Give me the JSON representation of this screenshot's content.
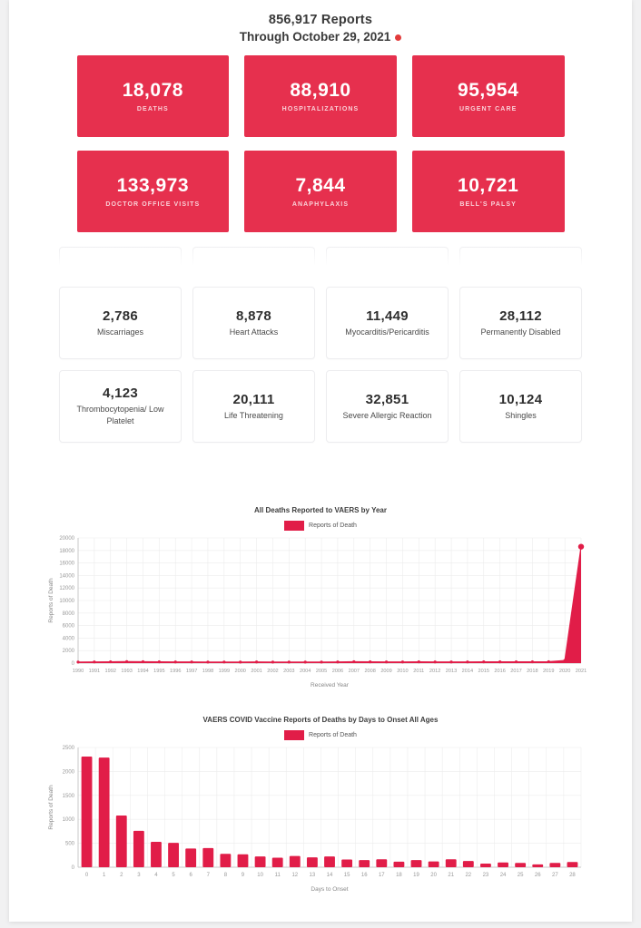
{
  "header": {
    "reports_total": "856,917 Reports",
    "through_date": "Through October 29, 2021"
  },
  "colors": {
    "card_red": "#e6304e",
    "chart_red": "#e11d48",
    "live_dot": "#e23b3b"
  },
  "red_cards": [
    {
      "value": "18,078",
      "label": "DEATHS"
    },
    {
      "value": "88,910",
      "label": "HOSPITALIZATIONS"
    },
    {
      "value": "95,954",
      "label": "URGENT CARE"
    },
    {
      "value": "133,973",
      "label": "DOCTOR OFFICE VISITS"
    },
    {
      "value": "7,844",
      "label": "ANAPHYLAXIS"
    },
    {
      "value": "10,721",
      "label": "BELL'S PALSY"
    }
  ],
  "white_cards": [
    {
      "value": "2,786",
      "label": "Miscarriages"
    },
    {
      "value": "8,878",
      "label": "Heart Attacks"
    },
    {
      "value": "11,449",
      "label": "Myocarditis/Pericarditis"
    },
    {
      "value": "28,112",
      "label": "Permanently Disabled"
    },
    {
      "value": "4,123",
      "label": "Thrombocytopenia/ Low Platelet"
    },
    {
      "value": "20,111",
      "label": "Life Threatening"
    },
    {
      "value": "32,851",
      "label": "Severe Allergic Reaction"
    },
    {
      "value": "10,124",
      "label": "Shingles"
    }
  ],
  "placeholder_row": {
    "count": 4
  },
  "chart_data": [
    {
      "type": "area",
      "title": "All Deaths Reported to VAERS by Year",
      "legend": [
        "Reports of Death"
      ],
      "xlabel": "Received Year",
      "ylabel": "Reports of Death",
      "ylim": [
        0,
        20000
      ],
      "ytick_step": 2000,
      "grid": true,
      "legend_position": "top",
      "emphasize_last": true,
      "categories": [
        "1990",
        "1991",
        "1992",
        "1993",
        "1994",
        "1995",
        "1996",
        "1997",
        "1998",
        "1999",
        "2000",
        "2001",
        "2002",
        "2003",
        "2004",
        "2005",
        "2006",
        "2007",
        "2008",
        "2009",
        "2010",
        "2011",
        "2012",
        "2013",
        "2014",
        "2015",
        "2016",
        "2017",
        "2018",
        "2019",
        "2020",
        "2021"
      ],
      "values": [
        160,
        190,
        210,
        240,
        220,
        200,
        185,
        190,
        170,
        175,
        160,
        180,
        165,
        170,
        160,
        170,
        185,
        215,
        200,
        190,
        185,
        200,
        190,
        185,
        190,
        200,
        195,
        210,
        205,
        230,
        420,
        18600
      ]
    },
    {
      "type": "bar",
      "title": "VAERS COVID Vaccine Reports of Deaths by Days to Onset All Ages",
      "legend": [
        "Reports of Death"
      ],
      "xlabel": "Days to Onset",
      "ylabel": "Reports of Death",
      "ylim": [
        0,
        2500
      ],
      "ytick_step": 500,
      "grid": true,
      "legend_position": "top",
      "emphasize_last": false,
      "categories": [
        "0",
        "1",
        "2",
        "3",
        "4",
        "5",
        "6",
        "7",
        "8",
        "9",
        "10",
        "11",
        "12",
        "13",
        "14",
        "15",
        "16",
        "17",
        "18",
        "19",
        "20",
        "21",
        "22",
        "23",
        "24",
        "25",
        "26",
        "27",
        "28"
      ],
      "values": [
        2310,
        2290,
        1080,
        760,
        530,
        510,
        390,
        400,
        280,
        270,
        225,
        200,
        235,
        205,
        225,
        160,
        150,
        165,
        115,
        150,
        120,
        165,
        130,
        75,
        100,
        90,
        60,
        90,
        110
      ]
    }
  ]
}
